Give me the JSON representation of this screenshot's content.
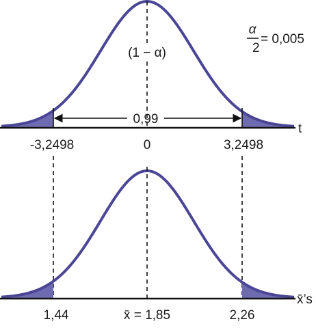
{
  "top_graph": {
    "axis_label": "t",
    "center_label": "(1 − α)",
    "interval_label": "0,99",
    "alpha_half": {
      "numerator": "α",
      "denominator": "2",
      "value": "= 0,005"
    },
    "ticks": {
      "left": "-3,2498",
      "center": "0",
      "right": "3,2498"
    }
  },
  "bottom_graph": {
    "axis_label": "x̄’s",
    "ticks": {
      "left": "1,44",
      "center": "x̄ = 1,85",
      "right": "2,26"
    }
  },
  "colors": {
    "curve": "#4b4596",
    "tail_fill": "#6f6bb0",
    "axis": "#111111"
  }
}
